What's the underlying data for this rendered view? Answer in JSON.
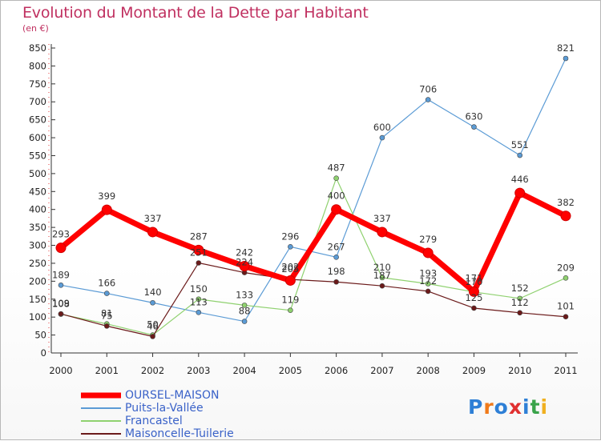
{
  "title": "Evolution du Montant de la Dette par Habitant",
  "unit_label": "(en €)",
  "logo_text": "Proxiti",
  "chart_data": {
    "type": "line",
    "title": "Evolution du Montant de la Dette par Habitant",
    "ylabel": "(en €)",
    "categories": [
      "2000",
      "2001",
      "2002",
      "2003",
      "2004",
      "2005",
      "2006",
      "2007",
      "2008",
      "2009",
      "2010",
      "2011"
    ],
    "ylim": [
      0,
      850
    ],
    "yticks": [
      0,
      50,
      100,
      150,
      200,
      250,
      300,
      350,
      400,
      450,
      500,
      550,
      600,
      650,
      700,
      750,
      800,
      850
    ],
    "grid": false,
    "legend_position": "bottom-left",
    "series": [
      {
        "name": "OURSEL-MAISON",
        "color": "#ff0000",
        "values": [
          293,
          399,
          337,
          287,
          242,
          202,
          400,
          337,
          279,
          171,
          446,
          382
        ],
        "labels": [
          "293",
          "399",
          "337",
          "287",
          "242",
          "202",
          "400",
          "337",
          "279",
          "171",
          "446",
          "382"
        ]
      },
      {
        "name": "Puits-la-Vallée",
        "color": "#5b9bd5",
        "values": [
          189,
          166,
          140,
          113,
          88,
          296,
          267,
          600,
          706,
          630,
          551,
          821
        ],
        "labels": [
          "189",
          "166",
          "140",
          "113",
          "88",
          "296",
          "267",
          "600",
          "706",
          "630",
          "551",
          "821"
        ]
      },
      {
        "name": "Francastel",
        "color": "#8fd16f",
        "values": [
          108,
          81,
          50,
          150,
          133,
          119,
          487,
          210,
          193,
          170,
          152,
          209
        ],
        "labels": [
          "108",
          "81",
          "50",
          "150",
          "133",
          "119",
          "487",
          "210",
          "193",
          "170",
          "152",
          "209"
        ]
      },
      {
        "name": "Maisoncelle-Tuilerie",
        "color": "#6b1a1a",
        "values": [
          109,
          75,
          46,
          251,
          224,
          205,
          198,
          187,
          172,
          125,
          112,
          101
        ],
        "labels": [
          "109",
          "75",
          "46",
          "251",
          "224",
          "205",
          "198",
          "187",
          "172",
          "125",
          "112",
          "101"
        ]
      }
    ]
  }
}
